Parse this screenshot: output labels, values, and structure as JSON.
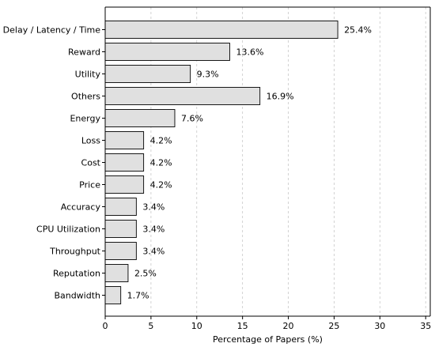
{
  "chart_data": {
    "type": "bar",
    "orientation": "horizontal",
    "categories": [
      "Delay / Latency / Time",
      "Reward",
      "Utility",
      "Others",
      "Energy",
      "Loss",
      "Cost",
      "Price",
      "Accuracy",
      "CPU Utilization",
      "Throughput",
      "Reputation",
      "Bandwidth"
    ],
    "values": [
      25.4,
      13.6,
      9.3,
      16.9,
      7.6,
      4.2,
      4.2,
      4.2,
      3.4,
      3.4,
      3.4,
      2.5,
      1.7
    ],
    "data_labels": [
      "25.4%",
      "13.6%",
      "9.3%",
      "16.9%",
      "7.6%",
      "4.2%",
      "4.2%",
      "4.2%",
      "3.4%",
      "3.4%",
      "3.4%",
      "2.5%",
      "1.7%"
    ],
    "xlabel": "Percentage of Papers (%)",
    "ylabel": "",
    "xlim": [
      0,
      35.5
    ],
    "xticks": [
      0,
      5,
      10,
      15,
      20,
      25,
      30,
      35
    ],
    "grid": "vertical dashed at x ticks",
    "bar_color": "#e0e0e0",
    "bar_edge_color": "#000000",
    "grid_color": "#c8c8c8"
  }
}
